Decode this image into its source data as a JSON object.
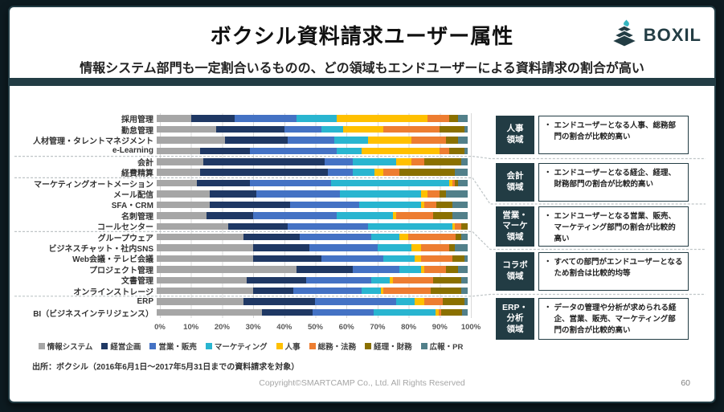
{
  "slide": {
    "title": "ボクシル資料請求ユーザー属性",
    "subtitle": "情報システム部門も一定割合いるものの、どの領域もエンドユーザーによる資料請求の割合が高い",
    "logo_text": "BOXIL",
    "source": "出所：ボクシル（2016年6月1日～2017年5月31日までの資料請求を対象）",
    "copyright": "Copyright©SMARTCAMP Co., Ltd. All Rights Reserved",
    "page_number": "60"
  },
  "chart_data": {
    "type": "bar",
    "orientation": "horizontal-stacked",
    "unit": "percent",
    "xlim": [
      0,
      100
    ],
    "grid": true,
    "legend_position": "bottom",
    "x_ticks": [
      "0%",
      "10%",
      "20%",
      "30%",
      "40%",
      "50%",
      "60%",
      "70%",
      "80%",
      "90%",
      "100%"
    ],
    "categories": [
      "採用管理",
      "勤怠管理",
      "人材管理・タレントマネジメント",
      "e-Learning",
      "会計",
      "経費精算",
      "マーケティングオートメーション",
      "メール配信",
      "SFA・CRM",
      "名刺管理",
      "コールセンター",
      "グループウェア",
      "ビジネスチャット・社内SNS",
      "Web会議・テレビ会議",
      "プロジェクト管理",
      "文書管理",
      "オンラインストレージ",
      "ERP",
      "BI（ビジネスインテリジェンス）"
    ],
    "series": [
      {
        "name": "情報システム",
        "color": "#a6a6a6",
        "values": [
          11,
          19,
          22,
          14,
          15,
          14,
          13,
          17,
          17,
          16,
          23,
          28,
          31,
          31,
          45,
          29,
          31,
          28,
          36
        ]
      },
      {
        "name": "経営企画",
        "color": "#1f3864",
        "values": [
          14,
          22,
          20,
          16,
          39,
          41,
          17,
          15,
          26,
          15,
          19,
          18,
          18,
          22,
          18,
          19,
          13,
          23,
          17
        ]
      },
      {
        "name": "営業・販売",
        "color": "#4472c4",
        "values": [
          20,
          12,
          15,
          28,
          9,
          8,
          26,
          27,
          22,
          27,
          26,
          23,
          22,
          20,
          15,
          21,
          22,
          26,
          21
        ]
      },
      {
        "name": "マーケティング",
        "color": "#29b5d0",
        "values": [
          13,
          7,
          11,
          8,
          14,
          7,
          38,
          26,
          20,
          18,
          27,
          9,
          11,
          10,
          7,
          6,
          6,
          6,
          21
        ]
      },
      {
        "name": "人事",
        "color": "#ffc000",
        "values": [
          29,
          13,
          14,
          25,
          5,
          3,
          1,
          2,
          1,
          1,
          1,
          3,
          3,
          2,
          1,
          1,
          1,
          3,
          1
        ]
      },
      {
        "name": "総務・法務",
        "color": "#ed7d31",
        "values": [
          7,
          18,
          11,
          3,
          4,
          5,
          1,
          4,
          4,
          12,
          2,
          15,
          9,
          10,
          7,
          13,
          15,
          6,
          1
        ]
      },
      {
        "name": "経理・財務",
        "color": "#8a7000",
        "values": [
          3,
          8,
          4,
          5,
          12,
          18,
          1,
          2,
          5,
          6,
          2,
          2,
          2,
          4,
          4,
          9,
          10,
          7,
          7
        ]
      },
      {
        "name": "広報・PR",
        "color": "#52808a",
        "values": [
          3,
          1,
          3,
          1,
          2,
          4,
          3,
          7,
          5,
          5,
          0,
          2,
          4,
          1,
          3,
          2,
          2,
          1,
          2
        ]
      }
    ]
  },
  "annotations": [
    {
      "label_lines": [
        "人事",
        "領域"
      ],
      "note": "エンドユーザーとなる人事、総務部門の割合が比較的高い"
    },
    {
      "label_lines": [
        "会計",
        "領域"
      ],
      "note": "エンドユーザーとなる経企、経理、財務部門の割合が比較的高い"
    },
    {
      "label_lines": [
        "営業・",
        "マーケ",
        "領域"
      ],
      "note": "エンドユーザーとなる営業、販売、マーケティング部門の割合が比較的高い"
    },
    {
      "label_lines": [
        "コラボ",
        "領域"
      ],
      "note": "すべての部門がエンドユーザーとなるため割合は比較的均等"
    },
    {
      "label_lines": [
        "ERP・",
        "分析",
        "領域"
      ],
      "note": "データの管理や分析が求められる経企、営業、販売、マーケティング部門の割合が比較的高い"
    }
  ]
}
